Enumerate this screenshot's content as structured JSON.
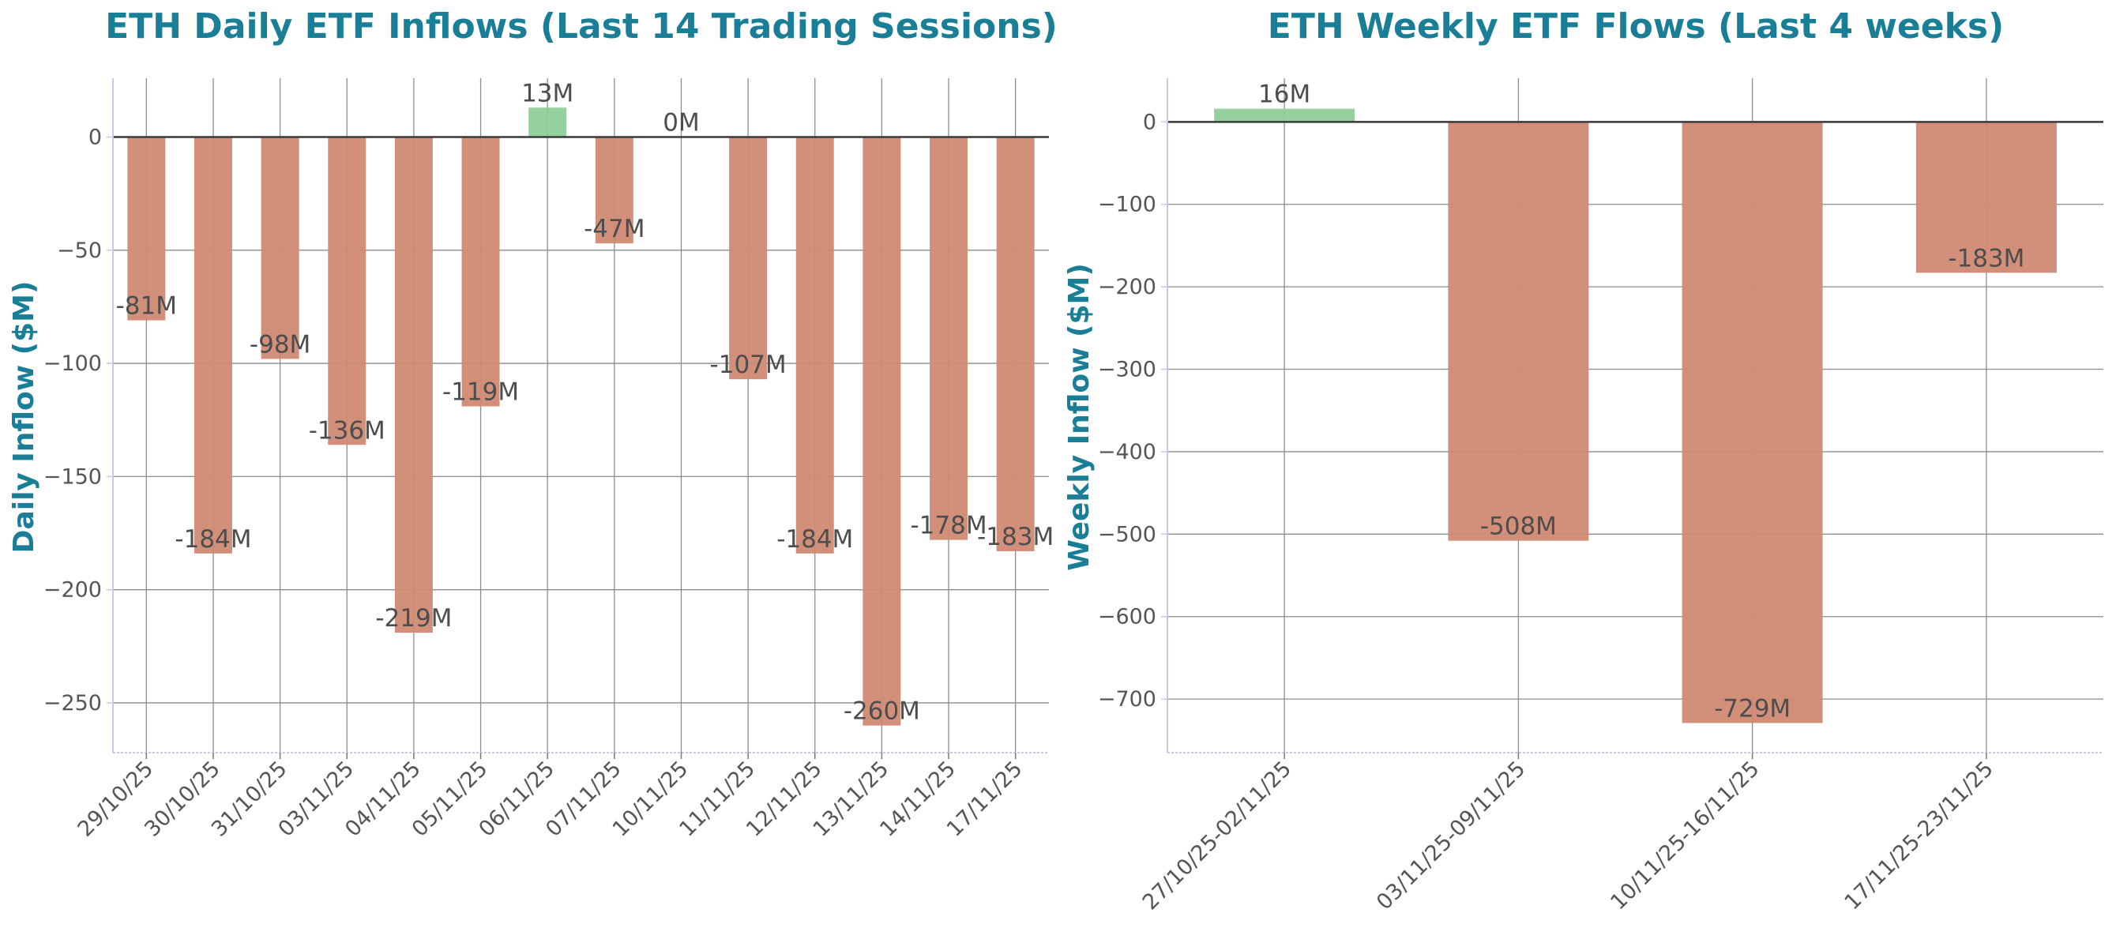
{
  "colors": {
    "title": "#1a7f96",
    "negative": "#d08a74",
    "positive": "#8fcf9a",
    "grid": "#8c8c8c",
    "zero_line": "#3a3a3a",
    "spine": "#c8c8e6",
    "tick_text": "#555555",
    "label_text": "#4d4d4d"
  },
  "chart_data": [
    {
      "type": "bar",
      "title": "ETH Daily ETF Inflows (Last 14 Trading Sessions)",
      "xlabel": "",
      "ylabel": "Daily Inflow ($M)",
      "categories": [
        "29/10/25",
        "30/10/25",
        "31/10/25",
        "03/11/25",
        "04/11/25",
        "05/11/25",
        "06/11/25",
        "07/11/25",
        "10/11/25",
        "11/11/25",
        "12/11/25",
        "13/11/25",
        "14/11/25",
        "17/11/25"
      ],
      "values": [
        -81,
        -184,
        -98,
        -136,
        -219,
        -119,
        13,
        -47,
        0,
        -107,
        -184,
        -260,
        -178,
        -183
      ],
      "value_labels": [
        "-81M",
        "-184M",
        "-98M",
        "-136M",
        "-219M",
        "-119M",
        "13M",
        "-47M",
        "0M",
        "-107M",
        "-184M",
        "-260M",
        "-178M",
        "-183M"
      ],
      "yticks": [
        0,
        -50,
        -100,
        -150,
        -200,
        -250
      ],
      "ytick_labels": [
        "0",
        "−50",
        "−100",
        "−150",
        "−200",
        "−250"
      ],
      "ylim": [
        -272,
        26
      ],
      "grid": true
    },
    {
      "type": "bar",
      "title": "ETH Weekly ETF Flows (Last 4 weeks)",
      "xlabel": "",
      "ylabel": "Weekly Inflow ($M)",
      "categories": [
        "27/10/25-02/11/25",
        "03/11/25-09/11/25",
        "10/11/25-16/11/25",
        "17/11/25-23/11/25"
      ],
      "values": [
        16,
        -508,
        -729,
        -183
      ],
      "value_labels": [
        "16M",
        "-508M",
        "-729M",
        "-183M"
      ],
      "yticks": [
        0,
        -100,
        -200,
        -300,
        -400,
        -500,
        -600,
        -700
      ],
      "ytick_labels": [
        "0",
        "−100",
        "−200",
        "−300",
        "−400",
        "−500",
        "−600",
        "−700"
      ],
      "ylim": [
        -765,
        53
      ],
      "grid": true
    }
  ]
}
